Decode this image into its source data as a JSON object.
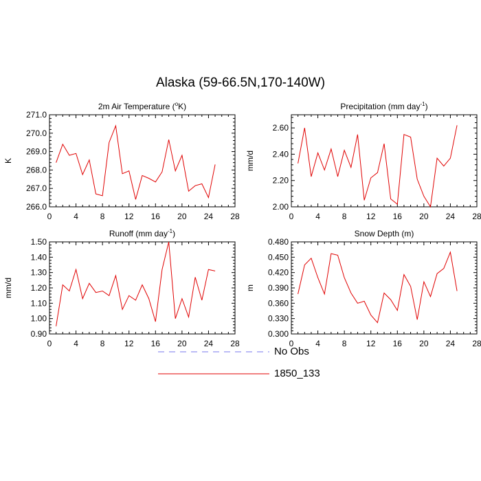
{
  "figure": {
    "title": "Alaska (59-66.5N,170-140W)"
  },
  "legend": [
    {
      "label": "No Obs",
      "color": "#7777ee",
      "dash": true
    },
    {
      "label": "1850_133",
      "color": "#e00000",
      "dash": false
    }
  ],
  "chart_data": [
    {
      "type": "line",
      "title": "2m Air Temperature (°K)",
      "title_parts": {
        "pre": "2m Air Temperature (",
        "sup": "o",
        "post": "K)"
      },
      "xlabel": "",
      "ylabel": "K",
      "xlim": [
        0,
        28
      ],
      "ylim": [
        266.0,
        271.0
      ],
      "xticks": [
        "0",
        "4",
        "8",
        "12",
        "16",
        "20",
        "24",
        "28"
      ],
      "yticks": [
        "266.0",
        "267.0",
        "268.0",
        "269.0",
        "270.0",
        "271.0"
      ],
      "series": [
        {
          "name": "1850_133",
          "color": "#e00000",
          "x": [
            1,
            2,
            3,
            4,
            5,
            6,
            7,
            8,
            9,
            10,
            11,
            12,
            13,
            14,
            15,
            16,
            17,
            18,
            19,
            20,
            21,
            22,
            23,
            24,
            25
          ],
          "y": [
            268.4,
            269.4,
            268.8,
            268.9,
            267.75,
            268.55,
            266.7,
            266.6,
            269.5,
            270.4,
            267.8,
            267.95,
            266.4,
            267.7,
            267.55,
            267.35,
            267.9,
            269.65,
            267.95,
            268.8,
            266.85,
            267.15,
            267.25,
            266.5,
            268.3
          ]
        }
      ]
    },
    {
      "type": "line",
      "title": "Precipitation (mm day-1)",
      "title_parts": {
        "pre": "Precipitation (mm day",
        "sup": "-1",
        "post": ")"
      },
      "xlabel": "",
      "ylabel": "mm/d",
      "xlim": [
        0,
        28
      ],
      "ylim": [
        2.0,
        2.7
      ],
      "xticks": [
        "0",
        "4",
        "8",
        "12",
        "16",
        "20",
        "24",
        "28"
      ],
      "yticks": [
        "2.00",
        "2.20",
        "2.40",
        "2.60"
      ],
      "series": [
        {
          "name": "1850_133",
          "color": "#e00000",
          "x": [
            1,
            2,
            3,
            4,
            5,
            6,
            7,
            8,
            9,
            10,
            11,
            12,
            13,
            14,
            15,
            16,
            17,
            18,
            19,
            20,
            21,
            22,
            23,
            24,
            25
          ],
          "y": [
            2.33,
            2.6,
            2.23,
            2.41,
            2.28,
            2.44,
            2.23,
            2.43,
            2.3,
            2.55,
            2.05,
            2.22,
            2.26,
            2.48,
            2.06,
            2.02,
            2.55,
            2.53,
            2.21,
            2.08,
            2.0,
            2.37,
            2.31,
            2.37,
            2.62
          ]
        }
      ]
    },
    {
      "type": "line",
      "title": "Runoff (mm day-1)",
      "title_parts": {
        "pre": "Runoff (mm day",
        "sup": "-1",
        "post": ")"
      },
      "xlabel": "",
      "ylabel": "mm/d",
      "xlim": [
        0,
        28
      ],
      "ylim": [
        0.9,
        1.5
      ],
      "xticks": [
        "0",
        "4",
        "8",
        "12",
        "16",
        "20",
        "24",
        "28"
      ],
      "yticks": [
        "0.90",
        "1.00",
        "1.10",
        "1.20",
        "1.30",
        "1.40",
        "1.50"
      ],
      "series": [
        {
          "name": "1850_133",
          "color": "#e00000",
          "x": [
            1,
            2,
            3,
            4,
            5,
            6,
            7,
            8,
            9,
            10,
            11,
            12,
            13,
            14,
            15,
            16,
            17,
            18,
            19,
            20,
            21,
            22,
            23,
            24,
            25
          ],
          "y": [
            0.95,
            1.22,
            1.18,
            1.32,
            1.13,
            1.23,
            1.17,
            1.18,
            1.15,
            1.28,
            1.06,
            1.15,
            1.12,
            1.22,
            1.13,
            0.98,
            1.32,
            1.5,
            1.0,
            1.13,
            1.01,
            1.27,
            1.12,
            1.32,
            1.31
          ]
        }
      ]
    },
    {
      "type": "line",
      "title": "Snow Depth (m)",
      "title_parts": {
        "pre": "Snow Depth (m)",
        "sup": "",
        "post": ""
      },
      "xlabel": "",
      "ylabel": "m",
      "xlim": [
        0,
        28
      ],
      "ylim": [
        0.3,
        0.48
      ],
      "xticks": [
        "0",
        "4",
        "8",
        "12",
        "16",
        "20",
        "24",
        "28"
      ],
      "yticks": [
        "0.300",
        "0.330",
        "0.360",
        "0.390",
        "0.420",
        "0.450",
        "0.480"
      ],
      "series": [
        {
          "name": "1850_133",
          "color": "#e00000",
          "x": [
            1,
            2,
            3,
            4,
            5,
            6,
            7,
            8,
            9,
            10,
            11,
            12,
            13,
            14,
            15,
            16,
            17,
            18,
            19,
            20,
            21,
            22,
            23,
            24,
            25
          ],
          "y": [
            0.378,
            0.435,
            0.448,
            0.41,
            0.378,
            0.457,
            0.454,
            0.41,
            0.38,
            0.36,
            0.364,
            0.337,
            0.322,
            0.38,
            0.367,
            0.346,
            0.416,
            0.393,
            0.328,
            0.402,
            0.373,
            0.418,
            0.428,
            0.46,
            0.384
          ]
        }
      ]
    }
  ]
}
